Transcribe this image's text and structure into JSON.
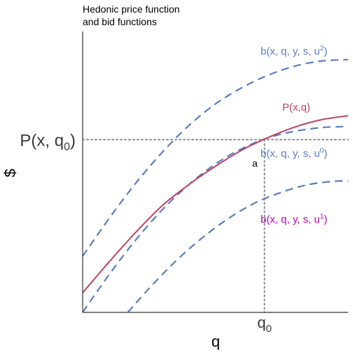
{
  "chart_data": {
    "type": "line",
    "title": [
      "Hedonic price function",
      "and bid functions"
    ],
    "xlabel": "q",
    "ylabel": "$",
    "xlim": [
      0,
      1
    ],
    "ylim": [
      0,
      1
    ],
    "grid": false,
    "reference_lines": {
      "vertical_x": 0.685,
      "vertical_label": "q0",
      "horizontal_y": 0.615,
      "horizontal_label": "P(x, q0)",
      "line_style": "dotted",
      "color": "#8a8a8a"
    },
    "series": [
      {
        "name": "P(x,q)",
        "color": "#c0435e",
        "style": "solid",
        "x": [
          0.0,
          0.1,
          0.2,
          0.3,
          0.4,
          0.5,
          0.6,
          0.7,
          0.8,
          0.9,
          1.0
        ],
        "y": [
          0.07,
          0.18,
          0.285,
          0.38,
          0.455,
          0.52,
          0.578,
          0.623,
          0.66,
          0.686,
          0.7
        ]
      },
      {
        "name": "b(x, q, y, s, u2)",
        "color": "#5b7cc4",
        "style": "dashed",
        "x": [
          0.0,
          0.1,
          0.2,
          0.3,
          0.4,
          0.5,
          0.6,
          0.7,
          0.8,
          0.9,
          1.0
        ],
        "y": [
          0.2,
          0.335,
          0.46,
          0.57,
          0.665,
          0.742,
          0.8,
          0.845,
          0.877,
          0.895,
          0.9
        ]
      },
      {
        "name": "b(x, q, y, s, u0)",
        "color": "#5b7cc4",
        "style": "dashed",
        "x": [
          0.0,
          0.1,
          0.2,
          0.3,
          0.4,
          0.5,
          0.6,
          0.7,
          0.8,
          0.9,
          1.0
        ],
        "y": [
          0.0,
          0.135,
          0.258,
          0.365,
          0.455,
          0.528,
          0.583,
          0.622,
          0.645,
          0.658,
          0.662
        ]
      },
      {
        "name": "b(x, q, y, s, u1)",
        "color": "#5b7cc4",
        "style": "dashed",
        "x": [
          0.17,
          0.25,
          0.35,
          0.45,
          0.55,
          0.65,
          0.75,
          0.85,
          0.95,
          1.0
        ],
        "y": [
          0.0,
          0.085,
          0.182,
          0.265,
          0.335,
          0.39,
          0.428,
          0.455,
          0.467,
          0.468
        ]
      }
    ],
    "annotations": [
      {
        "text": "P(x,q)",
        "color": "#c0435e"
      },
      {
        "text": "b(x, q, y, s, u",
        "sup": "2",
        "suffix": ")",
        "color": "#5b7cc4"
      },
      {
        "text": "b(x, q, y, s, u",
        "sup": "0",
        "suffix": ")",
        "color": "#5b7cc4"
      },
      {
        "text": "b(x, q, y, s, u",
        "sup": "1",
        "suffix": ")",
        "color": "#c000c0"
      },
      {
        "text": "a",
        "color": "#000000"
      }
    ]
  }
}
